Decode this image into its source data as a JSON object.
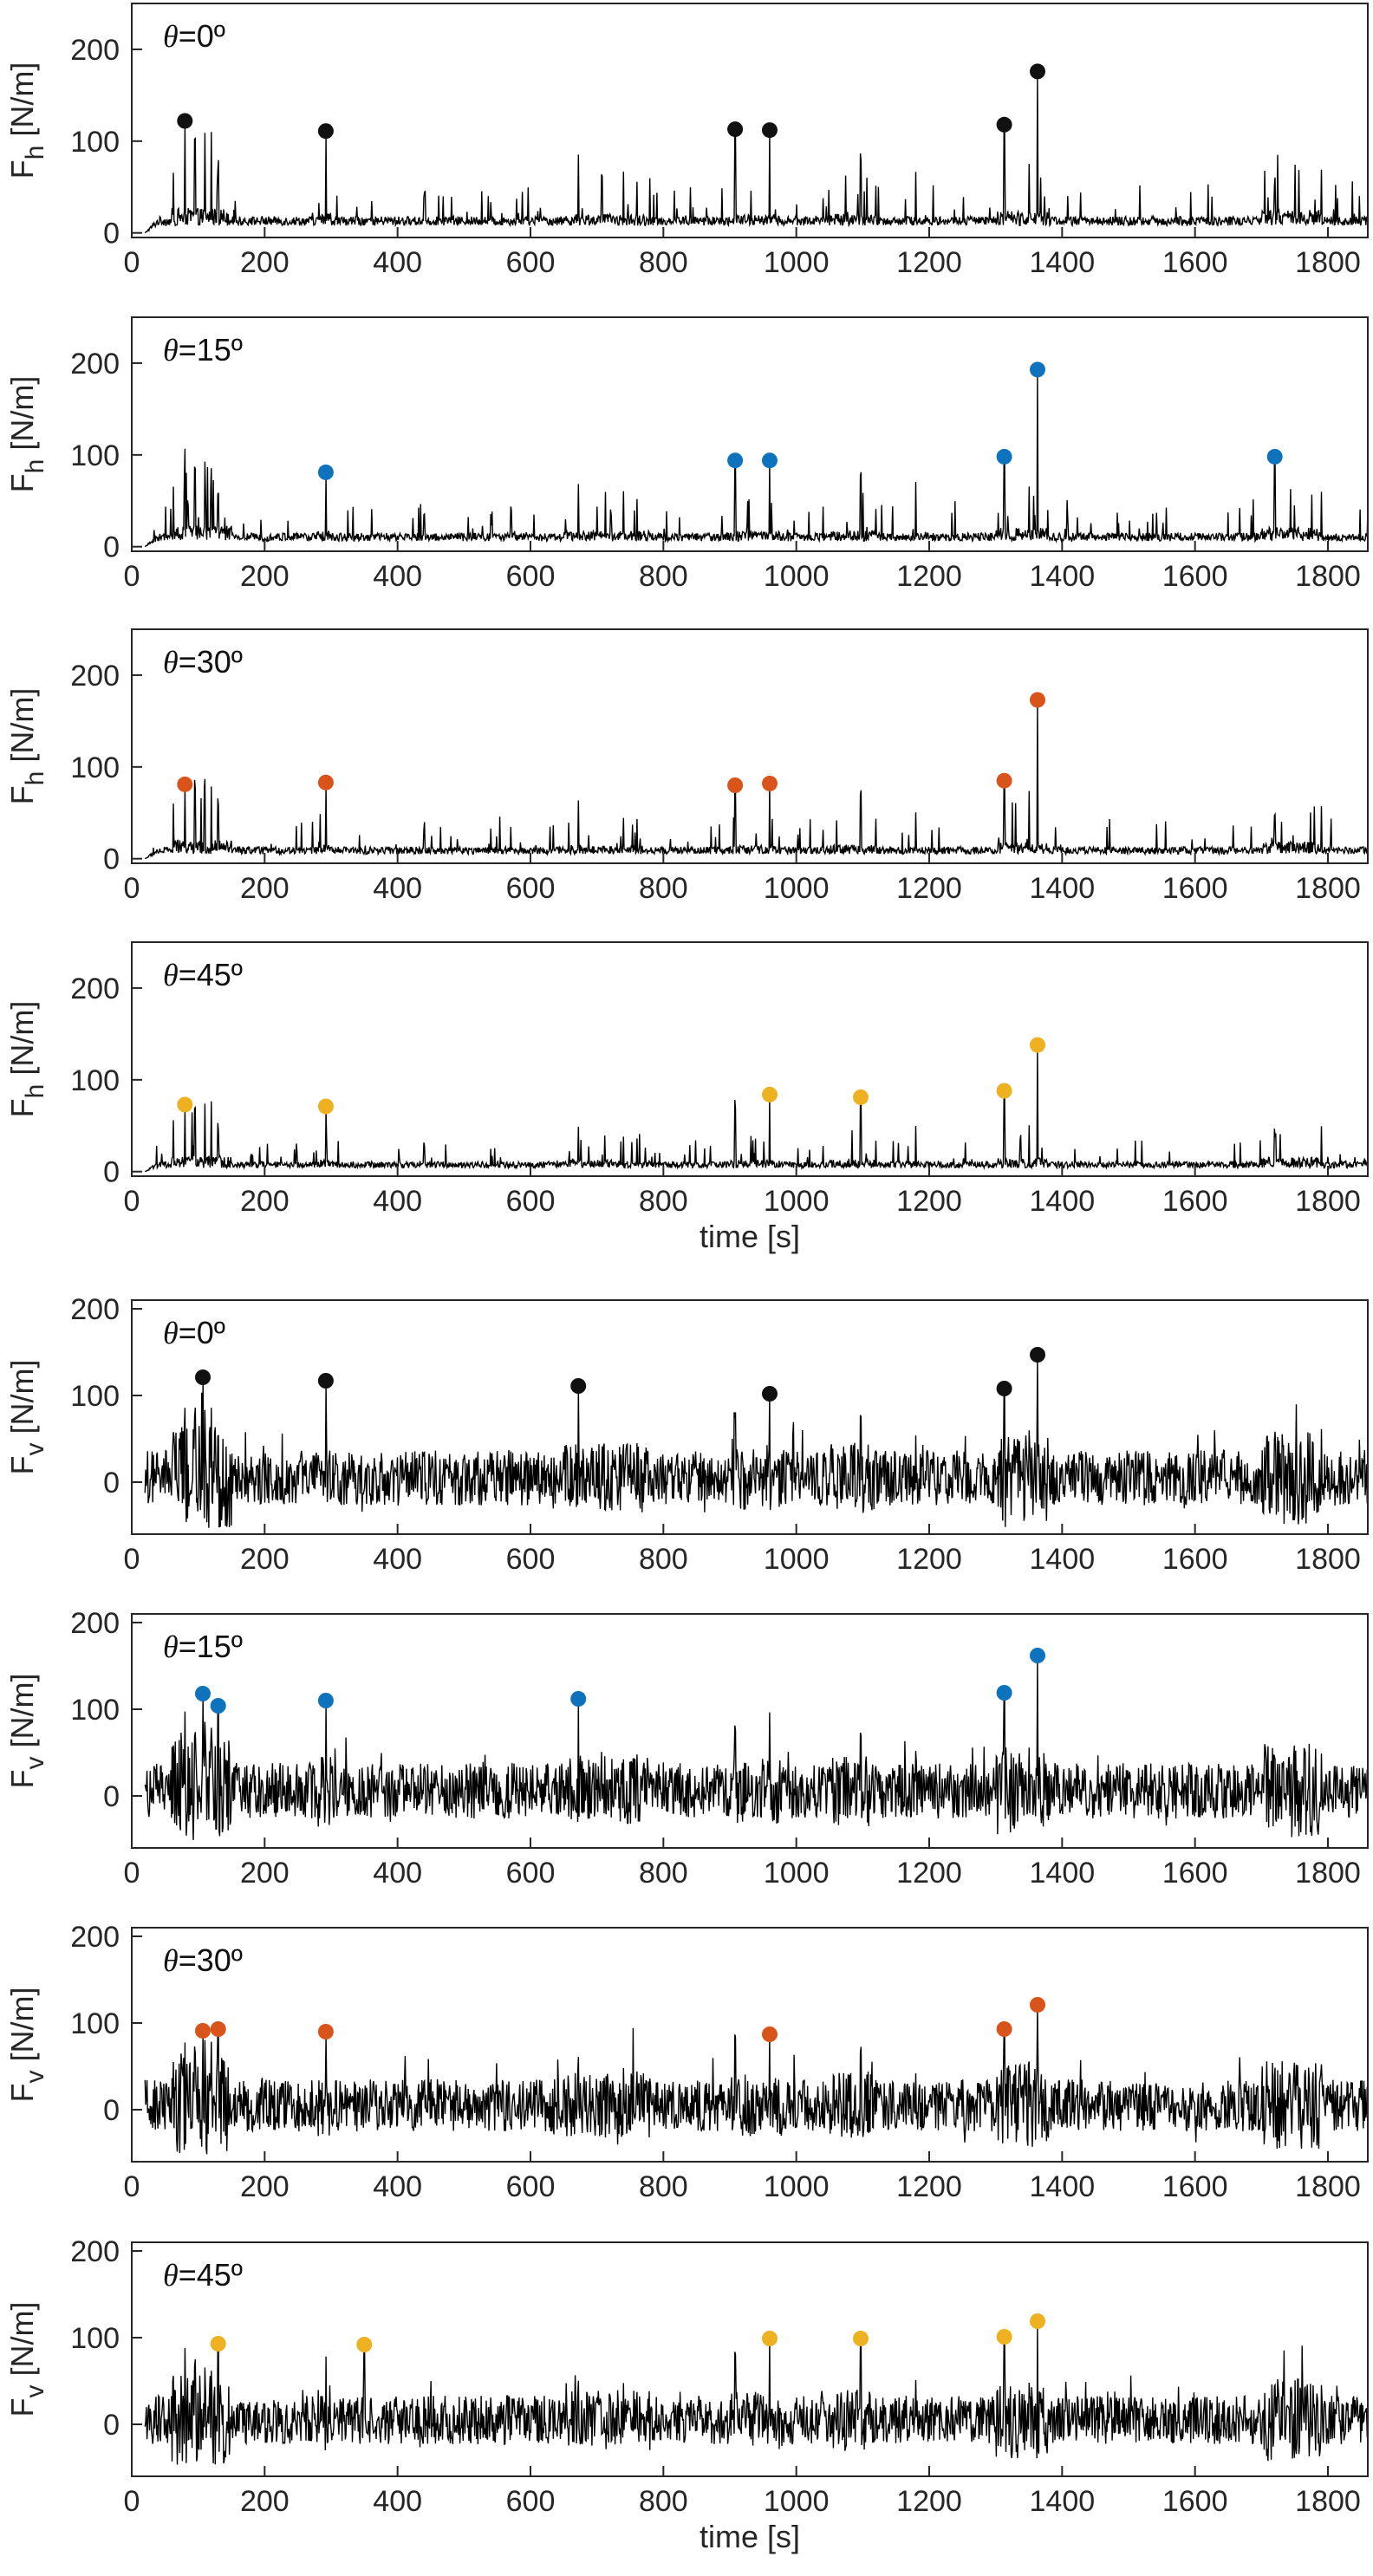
{
  "colors": {
    "theta_0": "#111111",
    "theta_15": "#0f72bd",
    "theta_30": "#d9541a",
    "theta_45": "#edb121",
    "line": "#000000",
    "axis": "#262626"
  },
  "chart_data": [
    {
      "id": "fh-0",
      "type": "line",
      "quantity": "horizontal",
      "theta_symbol": "θ",
      "theta_value": "=0º",
      "ylabel_main": "F",
      "ylabel_sub": "h",
      "ylabel_unit": " [N/m]",
      "xlabel": "",
      "xlim": [
        0,
        1860
      ],
      "ylim": [
        -5,
        250
      ],
      "yticks": [
        0,
        100,
        200
      ],
      "xticks": [
        0,
        200,
        400,
        600,
        800,
        1000,
        1200,
        1400,
        1600,
        1800
      ],
      "noise_base": 8,
      "noise_amp": 10,
      "peak_scale": 1.0,
      "markers": [
        [
          80,
          122
        ],
        [
          292,
          111
        ],
        [
          908,
          113
        ],
        [
          960,
          112
        ],
        [
          1313,
          118
        ],
        [
          1363,
          176
        ]
      ]
    },
    {
      "id": "fh-15",
      "type": "line",
      "quantity": "horizontal",
      "theta_symbol": "θ",
      "theta_value": "=15º",
      "ylabel_main": "F",
      "ylabel_sub": "h",
      "ylabel_unit": " [N/m]",
      "xlabel": "",
      "xlim": [
        0,
        1860
      ],
      "ylim": [
        -5,
        250
      ],
      "yticks": [
        0,
        100,
        200
      ],
      "xticks": [
        0,
        200,
        400,
        600,
        800,
        1000,
        1200,
        1400,
        1600,
        1800
      ],
      "noise_base": 6,
      "noise_amp": 9,
      "peak_scale": 0.95,
      "markers": [
        [
          292,
          81
        ],
        [
          908,
          94
        ],
        [
          960,
          94
        ],
        [
          1313,
          98
        ],
        [
          1363,
          193
        ],
        [
          1720,
          98
        ]
      ]
    },
    {
      "id": "fh-30",
      "type": "line",
      "quantity": "horizontal",
      "theta_symbol": "θ",
      "theta_value": "=30º",
      "ylabel_main": "F",
      "ylabel_sub": "h",
      "ylabel_unit": " [N/m]",
      "xlabel": "",
      "xlim": [
        0,
        1860
      ],
      "ylim": [
        -5,
        250
      ],
      "yticks": [
        0,
        100,
        200
      ],
      "xticks": [
        0,
        200,
        400,
        600,
        800,
        1000,
        1200,
        1400,
        1600,
        1800
      ],
      "noise_base": 5,
      "noise_amp": 8,
      "peak_scale": 0.85,
      "markers": [
        [
          80,
          81
        ],
        [
          292,
          83
        ],
        [
          908,
          80
        ],
        [
          960,
          82
        ],
        [
          1313,
          85
        ],
        [
          1363,
          173
        ]
      ]
    },
    {
      "id": "fh-45",
      "type": "line",
      "quantity": "horizontal",
      "theta_symbol": "θ",
      "theta_value": "=45º",
      "ylabel_main": "F",
      "ylabel_sub": "h",
      "ylabel_unit": " [N/m]",
      "xlabel": "time [s]",
      "xlim": [
        0,
        1860
      ],
      "ylim": [
        -5,
        250
      ],
      "yticks": [
        0,
        100,
        200
      ],
      "xticks": [
        0,
        200,
        400,
        600,
        800,
        1000,
        1200,
        1400,
        1600,
        1800
      ],
      "noise_base": 4,
      "noise_amp": 7,
      "peak_scale": 0.7,
      "markers": [
        [
          80,
          73
        ],
        [
          292,
          71
        ],
        [
          960,
          84
        ],
        [
          1097,
          81
        ],
        [
          1313,
          88
        ],
        [
          1363,
          138
        ]
      ]
    },
    {
      "id": "fv-0",
      "type": "line",
      "quantity": "vertical",
      "theta_symbol": "θ",
      "theta_value": "=0º",
      "ylabel_main": "F",
      "ylabel_sub": "v",
      "ylabel_unit": " [N/m]",
      "xlabel": "",
      "xlim": [
        0,
        1860
      ],
      "ylim": [
        -60,
        210
      ],
      "yticks": [
        0,
        100,
        200
      ],
      "xticks": [
        0,
        200,
        400,
        600,
        800,
        1000,
        1200,
        1400,
        1600,
        1800
      ],
      "noise_base": 5,
      "noise_amp": 32,
      "peak_scale": 0.8,
      "markers": [
        [
          107,
          121
        ],
        [
          292,
          117
        ],
        [
          672,
          111
        ],
        [
          960,
          102
        ],
        [
          1313,
          108
        ],
        [
          1363,
          147
        ]
      ]
    },
    {
      "id": "fv-15",
      "type": "line",
      "quantity": "vertical",
      "theta_symbol": "θ",
      "theta_value": "=15º",
      "ylabel_main": "F",
      "ylabel_sub": "v",
      "ylabel_unit": " [N/m]",
      "xlabel": "",
      "xlim": [
        0,
        1860
      ],
      "ylim": [
        -60,
        210
      ],
      "yticks": [
        0,
        100,
        200
      ],
      "xticks": [
        0,
        200,
        400,
        600,
        800,
        1000,
        1200,
        1400,
        1600,
        1800
      ],
      "noise_base": 6,
      "noise_amp": 32,
      "peak_scale": 0.8,
      "markers": [
        [
          107,
          118
        ],
        [
          130,
          104
        ],
        [
          292,
          110
        ],
        [
          672,
          112
        ],
        [
          1313,
          119
        ],
        [
          1363,
          162
        ]
      ]
    },
    {
      "id": "fv-30",
      "type": "line",
      "quantity": "vertical",
      "theta_symbol": "θ",
      "theta_value": "=30º",
      "ylabel_main": "F",
      "ylabel_sub": "v",
      "ylabel_unit": " [N/m]",
      "xlabel": "",
      "xlim": [
        0,
        1860
      ],
      "ylim": [
        -60,
        210
      ],
      "yticks": [
        0,
        100,
        200
      ],
      "xticks": [
        0,
        200,
        400,
        600,
        800,
        1000,
        1200,
        1400,
        1600,
        1800
      ],
      "noise_base": 5,
      "noise_amp": 30,
      "peak_scale": 0.75,
      "markers": [
        [
          107,
          91
        ],
        [
          130,
          93
        ],
        [
          292,
          90
        ],
        [
          960,
          87
        ],
        [
          1313,
          93
        ],
        [
          1363,
          121
        ]
      ]
    },
    {
      "id": "fv-45",
      "type": "line",
      "quantity": "vertical",
      "theta_symbol": "θ",
      "theta_value": "=45º",
      "ylabel_main": "F",
      "ylabel_sub": "v",
      "ylabel_unit": " [N/m]",
      "xlabel": "time [s]",
      "xlim": [
        0,
        1860
      ],
      "ylim": [
        -60,
        210
      ],
      "yticks": [
        0,
        100,
        200
      ],
      "xticks": [
        0,
        200,
        400,
        600,
        800,
        1000,
        1200,
        1400,
        1600,
        1800
      ],
      "noise_base": 5,
      "noise_amp": 28,
      "peak_scale": 0.7,
      "markers": [
        [
          130,
          93
        ],
        [
          350,
          92
        ],
        [
          960,
          99
        ],
        [
          1097,
          99
        ],
        [
          1313,
          101
        ],
        [
          1363,
          119
        ]
      ]
    }
  ]
}
